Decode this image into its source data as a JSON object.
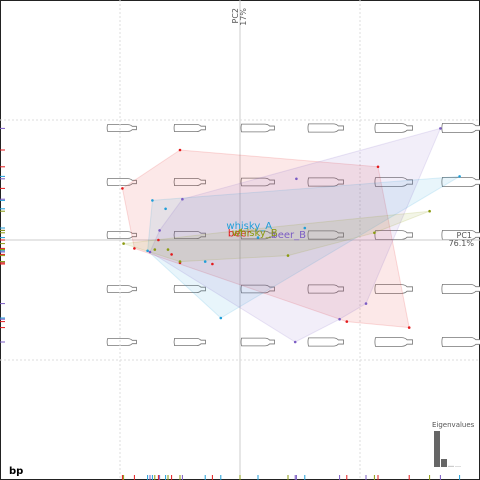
{
  "chart_data": {
    "type": "scatter",
    "title": "bp",
    "x_label": "PC1",
    "x_label_sub": "76.1%",
    "y_label": "PC2",
    "y_label_sub": "17%",
    "xlim": [
      -2,
      2
    ],
    "ylim": [
      -2,
      2
    ],
    "xticks": [
      -1,
      0,
      1
    ],
    "yticks": [
      -1,
      0,
      1
    ],
    "grid": true,
    "series": [
      {
        "name": "beer",
        "color": "#e31a1c",
        "x": [
          -0.5,
          -0.98,
          1.15,
          1.41,
          0.89,
          -0.23,
          -0.5,
          -0.68,
          -0.88,
          -0.57
        ],
        "values": [
          0.75,
          0.43,
          0.61,
          -0.73,
          -0.68,
          -0.2,
          -0.19,
          0,
          -0.07,
          -0.12
        ]
      },
      {
        "name": "whisky_A",
        "color": "#1f9ed8",
        "x": [
          -0.73,
          -0.62,
          -0.77,
          -0.29,
          -0.16,
          0.54,
          1.83,
          0.15
        ],
        "values": [
          0.33,
          0.26,
          -0.09,
          -0.18,
          -0.65,
          0.1,
          0.53,
          0.02
        ]
      },
      {
        "name": "beer_B",
        "color": "#7b5cc4",
        "x": [
          1.67,
          0.47,
          -0.48,
          -0.67,
          0.46,
          0.83,
          1.05,
          -0.75
        ],
        "values": [
          0.93,
          0.51,
          0.34,
          0.08,
          -0.85,
          -0.66,
          -0.53,
          -0.1
        ]
      },
      {
        "name": "whisky_B",
        "color": "#8a9a10",
        "x": [
          1.58,
          0.4,
          -0.97,
          -0.6,
          -0.71,
          0,
          1.12,
          -0.5
        ],
        "values": [
          0.24,
          -0.13,
          -0.03,
          -0.08,
          -0.08,
          0.08,
          0.06,
          -0.18
        ]
      }
    ],
    "eigen_title": "Eigenvalues",
    "eigenvalues": [
      4.5,
      1,
      0.15,
      0.08
    ]
  }
}
